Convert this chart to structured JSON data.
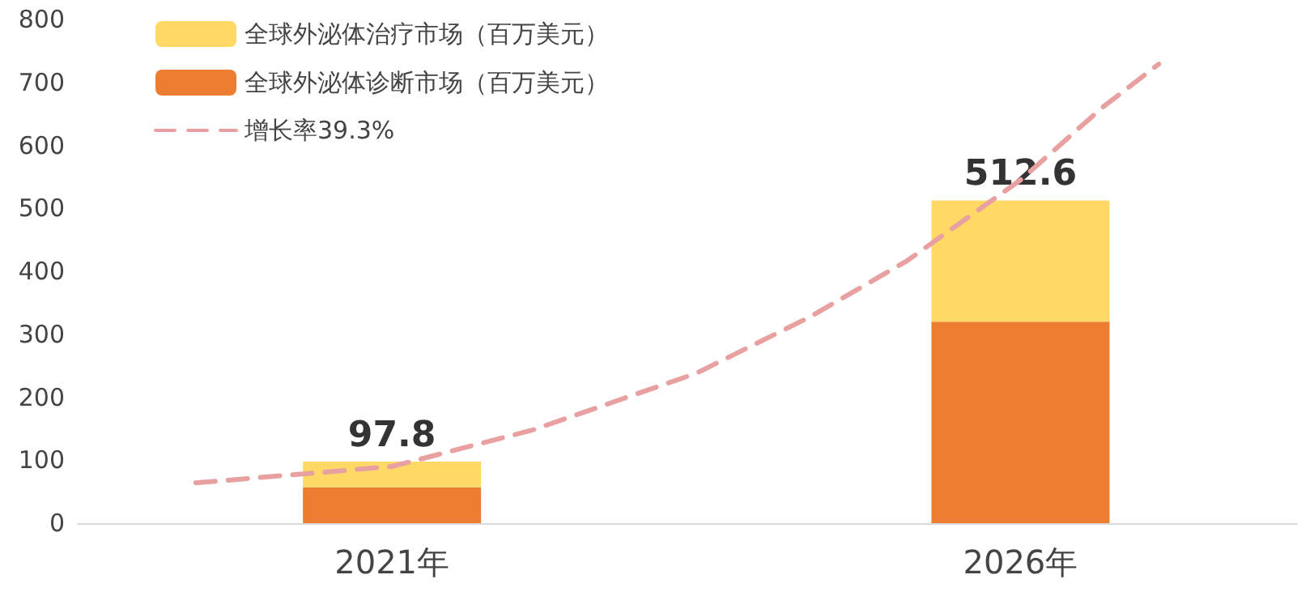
{
  "chart_data": {
    "type": "bar",
    "stacked": true,
    "x": [
      2021,
      2026
    ],
    "xlim": [
      2018.5,
      2028.2
    ],
    "xticks": [
      {
        "value": 2021,
        "label": "2021年"
      },
      {
        "value": 2026,
        "label": "2026年"
      }
    ],
    "ylim": [
      0,
      800
    ],
    "yticks": [
      0,
      100,
      200,
      300,
      400,
      500,
      600,
      700,
      800
    ],
    "grid": false,
    "legend": "top left",
    "totals": [
      "97.8",
      "512.6"
    ],
    "series": [
      {
        "name": "全球外泌体诊断市场（百万美元）",
        "color": "#ed7d31",
        "values": [
          57,
          320
        ]
      },
      {
        "name": "全球外泌体治疗市场（百万美元）",
        "color": "#ffd966",
        "values": [
          40.8,
          192.6
        ]
      },
      {
        "name": "增长率39.3%",
        "type": "line",
        "color": "#e8a0a0",
        "line_style": "dashed",
        "marker": "none",
        "x": [
          2019.44,
          2021,
          2022.12,
          2023.42,
          2024.32,
          2025.1,
          2026,
          2026.65,
          2027.1
        ],
        "values": [
          64,
          90,
          148,
          238,
          327,
          417,
          545,
          660,
          729
        ]
      }
    ]
  }
}
